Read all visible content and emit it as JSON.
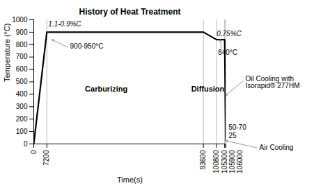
{
  "chart_data": {
    "type": "line",
    "title": "History of Heat Treatment",
    "xlabel": "Time(s)",
    "ylabel": "Temperature (°C)",
    "x": [
      0,
      7200,
      93600,
      100800,
      105300,
      105900,
      106000
    ],
    "values": [
      0,
      900,
      900,
      840,
      840,
      60,
      25
    ],
    "color": "#000000",
    "xlim": [
      0,
      106000
    ],
    "ylim": [
      0,
      1000
    ],
    "xticks": [
      0,
      7200,
      93600,
      100800,
      105300,
      105900,
      106000
    ],
    "yticks": [
      0,
      100,
      200,
      300,
      400,
      500,
      600,
      700,
      800,
      900,
      1000
    ],
    "grid": false,
    "vlines": {
      "x": [
        7200,
        93600,
        100800,
        105300,
        105900
      ],
      "color": "#aaaaaa"
    },
    "annotations": [
      {
        "text": "1.1-0.9%C",
        "x": 8000,
        "y": 948
      },
      {
        "text": "900-950°C",
        "x": 10000,
        "y": 840,
        "color": "#888888"
      },
      {
        "text": "0.75%C",
        "x": 100900,
        "y": 870
      },
      {
        "text": "840°C",
        "x": 102800,
        "y": 840,
        "color": "#888888"
      },
      {
        "text": "Carburizing",
        "x": 40000,
        "y": 440
      },
      {
        "text": "Diffusion",
        "x": 96000,
        "y": 440
      },
      {
        "text": "Oil Cooling with\nIsorapid® 277HM",
        "x": 105750,
        "y": 390,
        "color": "#888888"
      },
      {
        "text": "Air Cooling",
        "x": 105970,
        "y": 25,
        "color": "#888888"
      },
      {
        "text": "50-70",
        "x": 105870,
        "y": 68
      },
      {
        "text": "25",
        "x": 105970,
        "y": 28
      }
    ]
  }
}
